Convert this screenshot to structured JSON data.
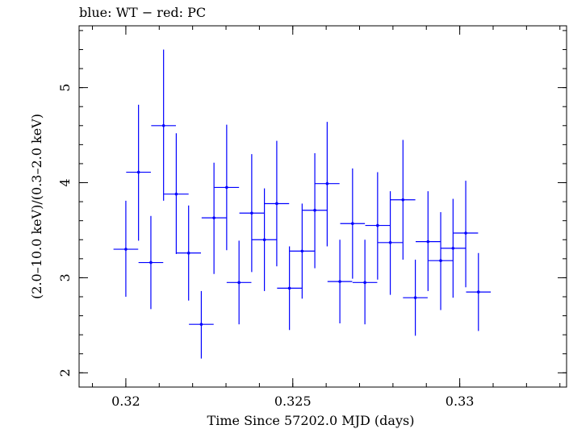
{
  "chart_data": {
    "type": "scatter",
    "title": "blue: WT − red: PC",
    "xlabel": "Time Since 57202.0 MJD (days)",
    "ylabel": "(2.0–10.0 keV)/(0.3–2.0 keV)",
    "xlim": [
      0.3186,
      0.3332
    ],
    "ylim": [
      1.85,
      5.65
    ],
    "x_ticks": [
      0.32,
      0.325,
      0.33
    ],
    "x_tick_labels": [
      "0.32",
      "0.325",
      "0.33"
    ],
    "y_ticks": [
      2,
      3,
      4,
      5
    ],
    "y_tick_labels": [
      "2",
      "3",
      "4",
      "5"
    ],
    "x_minor_step": 0.001,
    "y_minor_step": 0.2,
    "grid": false,
    "series": [
      {
        "color": "#0000ff",
        "points": [
          {
            "x": 0.32,
            "xerr": 0.00037,
            "y": 3.3,
            "ylow": 2.8,
            "yhigh": 3.81
          },
          {
            "x": 0.32038,
            "xerr": 0.00037,
            "y": 4.11,
            "ylow": 3.39,
            "yhigh": 4.82
          },
          {
            "x": 0.32075,
            "xerr": 0.00037,
            "y": 3.16,
            "ylow": 2.67,
            "yhigh": 3.65
          },
          {
            "x": 0.32113,
            "xerr": 0.00037,
            "y": 4.6,
            "ylow": 3.81,
            "yhigh": 5.4
          },
          {
            "x": 0.32151,
            "xerr": 0.00037,
            "y": 3.88,
            "ylow": 3.25,
            "yhigh": 4.52
          },
          {
            "x": 0.32188,
            "xerr": 0.00037,
            "y": 3.26,
            "ylow": 2.76,
            "yhigh": 3.76
          },
          {
            "x": 0.32226,
            "xerr": 0.00037,
            "y": 2.51,
            "ylow": 2.15,
            "yhigh": 2.86
          },
          {
            "x": 0.32264,
            "xerr": 0.00037,
            "y": 3.63,
            "ylow": 3.04,
            "yhigh": 4.21
          },
          {
            "x": 0.32302,
            "xerr": 0.00037,
            "y": 3.95,
            "ylow": 3.29,
            "yhigh": 4.61
          },
          {
            "x": 0.32339,
            "xerr": 0.00037,
            "y": 2.95,
            "ylow": 2.51,
            "yhigh": 3.39
          },
          {
            "x": 0.32377,
            "xerr": 0.00037,
            "y": 3.68,
            "ylow": 3.06,
            "yhigh": 4.3
          },
          {
            "x": 0.32415,
            "xerr": 0.00037,
            "y": 3.4,
            "ylow": 2.86,
            "yhigh": 3.94
          },
          {
            "x": 0.32452,
            "xerr": 0.00037,
            "y": 3.78,
            "ylow": 3.12,
            "yhigh": 4.44
          },
          {
            "x": 0.3249,
            "xerr": 0.00037,
            "y": 2.89,
            "ylow": 2.45,
            "yhigh": 3.33
          },
          {
            "x": 0.32528,
            "xerr": 0.00037,
            "y": 3.28,
            "ylow": 2.78,
            "yhigh": 3.78
          },
          {
            "x": 0.32566,
            "xerr": 0.00037,
            "y": 3.71,
            "ylow": 3.1,
            "yhigh": 4.31
          },
          {
            "x": 0.32603,
            "xerr": 0.00037,
            "y": 3.99,
            "ylow": 3.33,
            "yhigh": 4.64
          },
          {
            "x": 0.32641,
            "xerr": 0.00037,
            "y": 2.96,
            "ylow": 2.52,
            "yhigh": 3.4
          },
          {
            "x": 0.32679,
            "xerr": 0.00037,
            "y": 3.57,
            "ylow": 2.99,
            "yhigh": 4.15
          },
          {
            "x": 0.32716,
            "xerr": 0.00037,
            "y": 2.95,
            "ylow": 2.51,
            "yhigh": 3.4
          },
          {
            "x": 0.32754,
            "xerr": 0.00037,
            "y": 3.55,
            "ylow": 2.98,
            "yhigh": 4.11
          },
          {
            "x": 0.32792,
            "xerr": 0.00037,
            "y": 3.37,
            "ylow": 2.82,
            "yhigh": 3.91
          },
          {
            "x": 0.3283,
            "xerr": 0.00037,
            "y": 3.82,
            "ylow": 3.19,
            "yhigh": 4.45
          },
          {
            "x": 0.32867,
            "xerr": 0.00037,
            "y": 2.79,
            "ylow": 2.39,
            "yhigh": 3.19
          },
          {
            "x": 0.32905,
            "xerr": 0.00037,
            "y": 3.38,
            "ylow": 2.86,
            "yhigh": 3.91
          },
          {
            "x": 0.32943,
            "xerr": 0.00037,
            "y": 3.18,
            "ylow": 2.66,
            "yhigh": 3.69
          },
          {
            "x": 0.3298,
            "xerr": 0.00037,
            "y": 3.31,
            "ylow": 2.79,
            "yhigh": 3.83
          },
          {
            "x": 0.33018,
            "xerr": 0.00037,
            "y": 3.47,
            "ylow": 2.9,
            "yhigh": 4.02
          },
          {
            "x": 0.33056,
            "xerr": 0.00037,
            "y": 2.85,
            "ylow": 2.44,
            "yhigh": 3.26
          }
        ]
      }
    ]
  }
}
